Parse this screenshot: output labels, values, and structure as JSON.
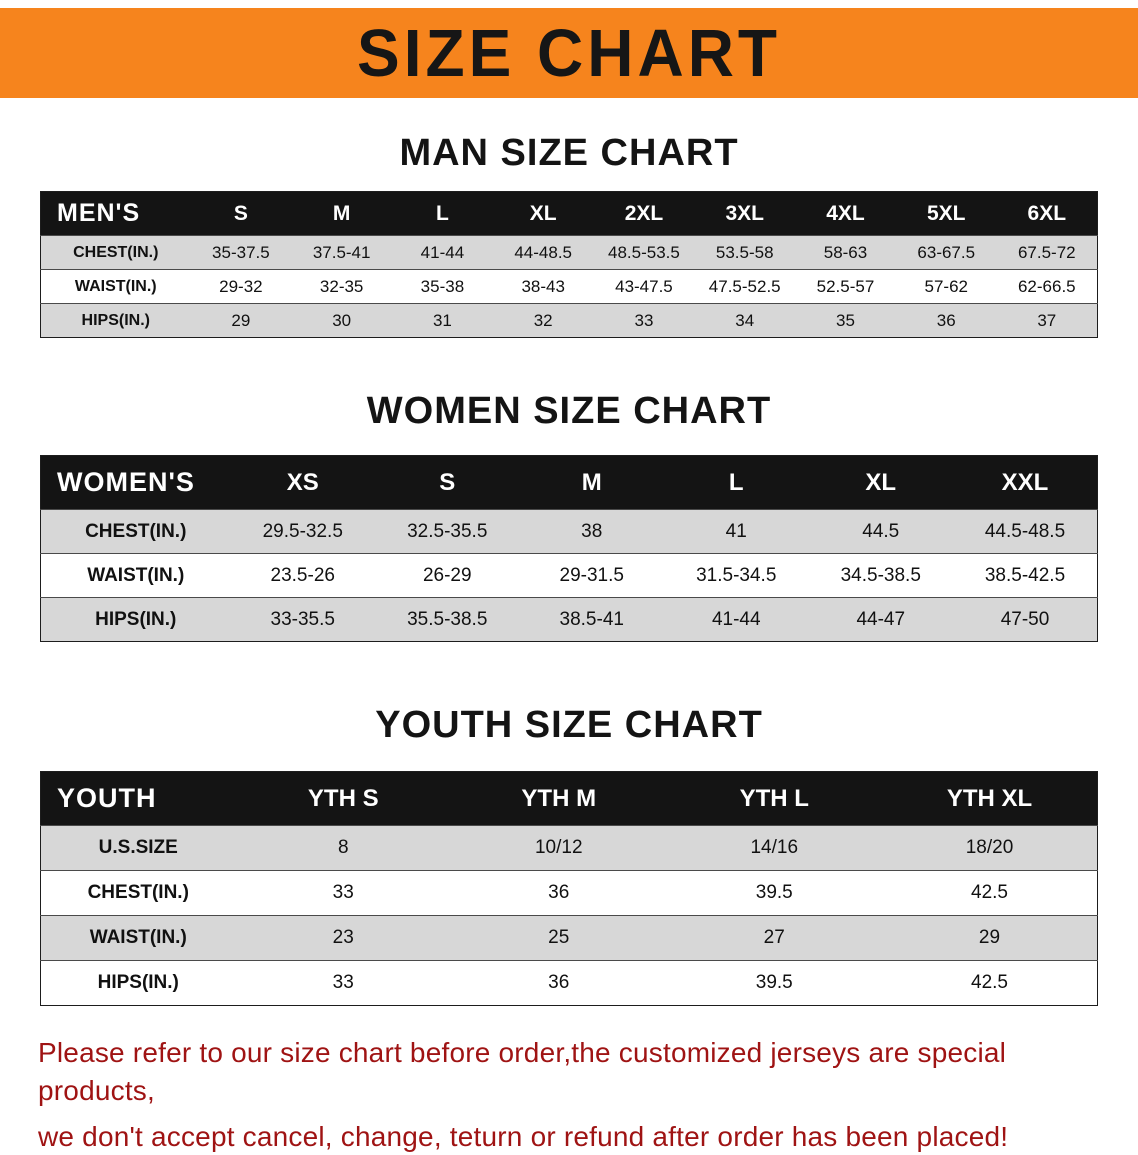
{
  "banner": {
    "title": "SIZE CHART",
    "bg_color": "#f6841d",
    "text_color": "#161616"
  },
  "sections": {
    "men": {
      "heading": "MAN SIZE CHART",
      "table": {
        "header": [
          "MEN'S",
          "S",
          "M",
          "L",
          "XL",
          "2XL",
          "3XL",
          "4XL",
          "5XL",
          "6XL"
        ],
        "rows": [
          [
            "CHEST(IN.)",
            "35-37.5",
            "37.5-41",
            "41-44",
            "44-48.5",
            "48.5-53.5",
            "53.5-58",
            "58-63",
            "63-67.5",
            "67.5-72"
          ],
          [
            "WAIST(IN.)",
            "29-32",
            "32-35",
            "35-38",
            "38-43",
            "43-47.5",
            "47.5-52.5",
            "52.5-57",
            "57-62",
            "62-66.5"
          ],
          [
            "HIPS(IN.)",
            "29",
            "30",
            "31",
            "32",
            "33",
            "34",
            "35",
            "36",
            "37"
          ]
        ]
      }
    },
    "women": {
      "heading": "WOMEN SIZE CHART",
      "table": {
        "header": [
          "WOMEN'S",
          "XS",
          "S",
          "M",
          "L",
          "XL",
          "XXL"
        ],
        "rows": [
          [
            "CHEST(IN.)",
            "29.5-32.5",
            "32.5-35.5",
            "38",
            "41",
            "44.5",
            "44.5-48.5"
          ],
          [
            "WAIST(IN.)",
            "23.5-26",
            "26-29",
            "29-31.5",
            "31.5-34.5",
            "34.5-38.5",
            "38.5-42.5"
          ],
          [
            "HIPS(IN.)",
            "33-35.5",
            "35.5-38.5",
            "38.5-41",
            "41-44",
            "44-47",
            "47-50"
          ]
        ]
      }
    },
    "youth": {
      "heading": "YOUTH SIZE CHART",
      "table": {
        "header": [
          "YOUTH",
          "YTH S",
          "YTH M",
          "YTH L",
          "YTH XL"
        ],
        "rows": [
          [
            "U.S.SIZE",
            "8",
            "10/12",
            "14/16",
            "18/20"
          ],
          [
            "CHEST(IN.)",
            "33",
            "36",
            "39.5",
            "42.5"
          ],
          [
            "WAIST(IN.)",
            "23",
            "25",
            "27",
            "29"
          ],
          [
            "HIPS(IN.)",
            "33",
            "36",
            "39.5",
            "42.5"
          ]
        ]
      }
    }
  },
  "footer": {
    "line1": "Please refer to our size chart before order,the customized jerseys are special products,",
    "line2": "we don't accept cancel, change, teturn or refund after order has been placed!",
    "color": "#9f1313"
  }
}
